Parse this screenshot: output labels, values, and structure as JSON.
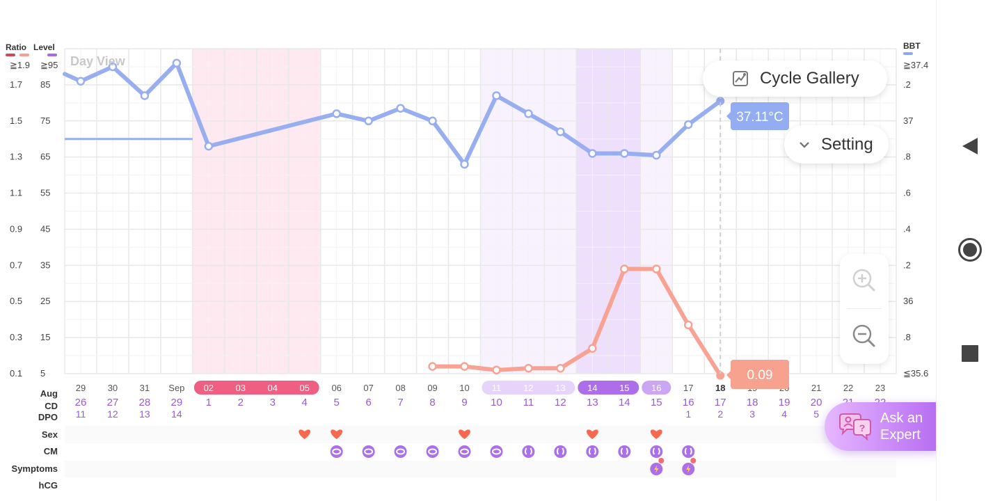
{
  "header": {
    "ratio_label": "Ratio",
    "level_label": "Level",
    "bbt_label": "BBT",
    "view_label": "Day View",
    "colors": {
      "ratio_a": "#c94b57",
      "ratio_b": "#f4a090",
      "level": "#a76ae6",
      "bbt": "#8fa8ef"
    }
  },
  "buttons": {
    "cycle_gallery": "Cycle Gallery",
    "setting": "Setting",
    "ask_expert_line1": "Ask an",
    "ask_expert_line2": "Expert"
  },
  "row_labels": {
    "month": "Aug",
    "cd": "CD",
    "dpo": "DPO",
    "sex": "Sex",
    "cm": "CM",
    "symptoms": "Symptoms",
    "hcg": "hCG"
  },
  "chart_data": {
    "type": "line",
    "left_ratio_ticks": [
      "≧1.9",
      "1.7",
      "1.5",
      "1.3",
      "1.1",
      "0.9",
      "0.7",
      "0.5",
      "0.3",
      "0.1"
    ],
    "left_level_ticks": [
      "≧95",
      "85",
      "75",
      "65",
      "55",
      "45",
      "35",
      "25",
      "15",
      "5"
    ],
    "right_bbt_ticks": [
      "≧37.4",
      ".2",
      "37",
      ".8",
      ".6",
      ".4",
      ".2",
      "36",
      ".8",
      "≦35.6"
    ],
    "ratio_range": [
      0.1,
      1.9
    ],
    "bbt_range": [
      35.6,
      37.4
    ],
    "date_labels": [
      "29",
      "30",
      "31",
      "Sep",
      "02",
      "03",
      "04",
      "05",
      "06",
      "07",
      "08",
      "09",
      "10",
      "11",
      "12",
      "13",
      "14",
      "15",
      "16",
      "17",
      "18",
      "19",
      "20",
      "21",
      "22",
      "23"
    ],
    "cd_labels": [
      "26",
      "27",
      "28",
      "29",
      "1",
      "2",
      "3",
      "4",
      "5",
      "6",
      "7",
      "8",
      "9",
      "10",
      "11",
      "12",
      "13",
      "14",
      "15",
      "16",
      "17",
      "18",
      "19",
      "20",
      "21",
      "22"
    ],
    "dpo_labels": [
      "11",
      "12",
      "13",
      "14",
      "",
      "",
      "",
      "",
      "",
      "",
      "",
      "",
      "",
      "",
      "",
      "",
      "",
      "",
      "",
      "1",
      "2",
      "3",
      "4",
      "5",
      "",
      ""
    ],
    "date_styles": [
      "n",
      "n",
      "n",
      "n",
      "period",
      "period",
      "period",
      "period",
      "n",
      "n",
      "n",
      "n",
      "n",
      "fert-light",
      "fert-light",
      "fert-light",
      "fert-dark",
      "fert-dark",
      "fert-mid",
      "n",
      "today",
      "n",
      "n",
      "n",
      "n",
      "n"
    ],
    "col_bg": [
      "",
      "",
      "",
      "",
      "period",
      "period",
      "period",
      "period",
      "",
      "",
      "",
      "",
      "",
      "fert-light",
      "fert-light",
      "fert-light",
      "fert-dark",
      "fert-dark",
      "fert-light",
      "",
      "",
      "",
      "",
      "",
      "",
      ""
    ],
    "bbt_series": {
      "name": "BBT",
      "start_value": 37.26,
      "values": [
        37.22,
        37.3,
        37.14,
        37.32,
        36.86,
        null,
        null,
        null,
        37.04,
        37.0,
        37.07,
        37.0,
        36.76,
        37.14,
        37.04,
        36.94,
        36.82,
        36.82,
        36.81,
        36.98,
        37.11,
        null,
        null,
        null,
        null,
        null
      ],
      "coverline": 36.9,
      "coverline_end_index": 3.5
    },
    "ratio_series": {
      "name": "Ratio",
      "values": [
        null,
        null,
        null,
        null,
        null,
        null,
        null,
        null,
        null,
        null,
        null,
        0.14,
        0.14,
        0.12,
        0.13,
        0.13,
        0.24,
        0.68,
        0.68,
        0.37,
        0.09,
        null,
        null,
        null,
        null,
        null
      ]
    },
    "bbt_callout": "37.11°C",
    "ratio_callout": "0.09",
    "today_index": 20,
    "sex_days": [
      7,
      8,
      12,
      16,
      18
    ],
    "cm_days": [
      8,
      9,
      10,
      11,
      12,
      13,
      14,
      15,
      16,
      17,
      18,
      19
    ],
    "cm_styles": [
      "egg",
      "egg",
      "egg",
      "egg",
      "egg",
      "egg",
      "water",
      "water",
      "water",
      "water",
      "water",
      "water"
    ],
    "symptom_days": [
      18,
      19
    ],
    "colors": {
      "bbt": "#97aef1",
      "ratio": "#f7a292",
      "period_bg": "#fde9ef",
      "period_pill": "#ef5f81",
      "fert_light_bg": "#f8f2fe",
      "fert_light_pill": "#e7d4fb",
      "fert_dark_bg": "#eedffd",
      "fert_dark_pill": "#ac6fe9",
      "fert_mid_pill": "#caa6f3",
      "purple_text": "#9a58d8",
      "grid": "#e8e8e8",
      "heart": "#f7694f",
      "ratio_callout": "#f7a28e",
      "bbt_callout": "#93acf2"
    }
  }
}
